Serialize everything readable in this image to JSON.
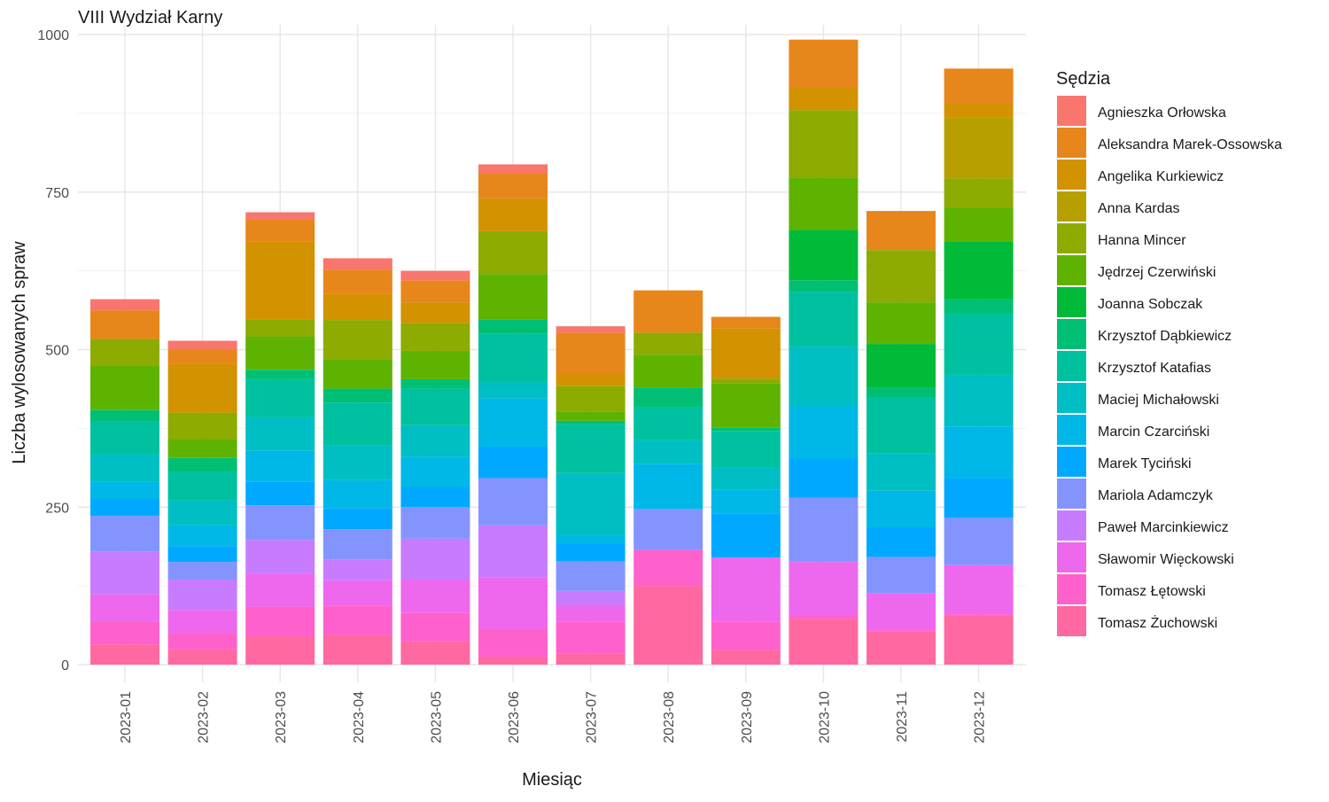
{
  "chart_data": {
    "type": "bar",
    "stacked": true,
    "title": "VIII Wydział Karny",
    "xlabel": "Miesiąc",
    "ylabel": "Liczba wylosowanych spraw",
    "ylim": [
      0,
      1000
    ],
    "yticks": [
      0,
      250,
      500,
      750,
      1000
    ],
    "grid": true,
    "legend": {
      "title": "Sędzia",
      "placement": "right"
    },
    "categories": [
      "2023-01",
      "2023-02",
      "2023-03",
      "2023-04",
      "2023-05",
      "2023-06",
      "2023-07",
      "2023-08",
      "2023-09",
      "2023-10",
      "2023-11",
      "2023-12"
    ],
    "series": [
      {
        "name": "Agnieszka Orłowska",
        "color": "#F8766D",
        "values": [
          18,
          14,
          12,
          18,
          15,
          14,
          10,
          0,
          0,
          0,
          0,
          0
        ]
      },
      {
        "name": "Aleksandra Marek-Ossowska",
        "color": "#E7861B",
        "values": [
          45,
          22,
          35,
          38,
          35,
          40,
          65,
          67,
          18,
          75,
          62,
          55
        ]
      },
      {
        "name": "Angelika Kurkiewicz",
        "color": "#D39200",
        "values": [
          0,
          78,
          123,
          42,
          33,
          52,
          20,
          0,
          80,
          37,
          0,
          22
        ]
      },
      {
        "name": "Anna Kardas",
        "color": "#B79F00",
        "values": [
          0,
          0,
          0,
          0,
          0,
          0,
          0,
          0,
          0,
          0,
          0,
          97
        ]
      },
      {
        "name": "Hanna Mincer",
        "color": "#8DAB00",
        "values": [
          43,
          42,
          27,
          62,
          44,
          68,
          40,
          35,
          8,
          107,
          83,
          47
        ]
      },
      {
        "name": "Jędrzej Czerwiński",
        "color": "#5EB300",
        "values": [
          70,
          30,
          53,
          47,
          45,
          72,
          15,
          52,
          70,
          83,
          66,
          53
        ]
      },
      {
        "name": "Joanna Sobczak",
        "color": "#00BA38",
        "values": [
          0,
          0,
          0,
          0,
          0,
          0,
          0,
          0,
          0,
          80,
          70,
          92
        ]
      },
      {
        "name": "Krzysztof Dąbkiewicz",
        "color": "#00BF74",
        "values": [
          18,
          22,
          15,
          22,
          15,
          23,
          5,
          32,
          5,
          18,
          15,
          23
        ]
      },
      {
        "name": "Krzysztof Katafias",
        "color": "#00C19F",
        "values": [
          52,
          45,
          60,
          68,
          58,
          77,
          78,
          52,
          58,
          87,
          88,
          97
        ]
      },
      {
        "name": "Maciej Michałowski",
        "color": "#00BFC4",
        "values": [
          43,
          40,
          53,
          55,
          50,
          25,
          100,
          37,
          35,
          95,
          60,
          82
        ]
      },
      {
        "name": "Marcin Czarciński",
        "color": "#00B8E7",
        "values": [
          28,
          33,
          50,
          45,
          48,
          77,
          12,
          72,
          38,
          83,
          58,
          82
        ]
      },
      {
        "name": "Marek Tyciński",
        "color": "#00A9FF",
        "values": [
          27,
          25,
          37,
          33,
          32,
          50,
          28,
          0,
          70,
          62,
          47,
          63
        ]
      },
      {
        "name": "Mariola Adamczyk",
        "color": "#8494FF",
        "values": [
          57,
          28,
          55,
          48,
          50,
          75,
          47,
          65,
          0,
          102,
          58,
          75
        ]
      },
      {
        "name": "Paweł Marcinkiewicz",
        "color": "#C77CFF",
        "values": [
          67,
          48,
          53,
          33,
          65,
          82,
          22,
          0,
          0,
          0,
          0,
          0
        ]
      },
      {
        "name": "Sławomir Więckowski",
        "color": "#ED68ED",
        "values": [
          43,
          37,
          53,
          40,
          53,
          82,
          27,
          0,
          102,
          85,
          58,
          78
        ]
      },
      {
        "name": "Tomasz Łętowski",
        "color": "#FF61CC",
        "values": [
          37,
          25,
          47,
          47,
          45,
          45,
          50,
          57,
          45,
          5,
          2,
          2
        ]
      },
      {
        "name": "Tomasz Żuchowski",
        "color": "#FF68A1",
        "values": [
          32,
          25,
          45,
          47,
          37,
          12,
          18,
          125,
          23,
          73,
          53,
          78
        ]
      }
    ]
  }
}
